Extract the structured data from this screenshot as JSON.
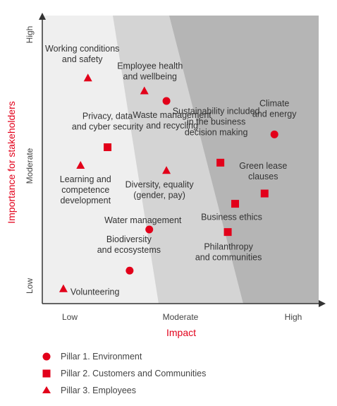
{
  "chart_data": {
    "type": "scatter",
    "title": "",
    "xlabel": "Impact",
    "ylabel": "Importance for stakeholders",
    "xlim": [
      0,
      100
    ],
    "ylim": [
      0,
      100
    ],
    "grid": false,
    "x_ticks": [
      "Low",
      "Moderate",
      "High"
    ],
    "y_ticks": [
      "Low",
      "Moderate",
      "High"
    ],
    "zones": [
      "low",
      "moderate",
      "high"
    ],
    "marker_color": "#e2001a",
    "zone_colors": [
      "#efefef",
      "#d4d4d4",
      "#b5b5b5"
    ],
    "legend_position": "bottom",
    "legend": [
      {
        "shape": "circle",
        "label": "Pillar 1. Environment"
      },
      {
        "shape": "square",
        "label": "Pillar 2. Customers and Communities"
      },
      {
        "shape": "triangle",
        "label": "Pillar 3. Employees"
      }
    ],
    "points": [
      {
        "label": [
          "Working conditions",
          "and safety"
        ],
        "pillar": 3,
        "x": 14,
        "y": 84
      },
      {
        "label": [
          "Employee health",
          "and wellbeing"
        ],
        "pillar": 3,
        "x": 37,
        "y": 79
      },
      {
        "label": [
          "Waste management",
          "and recycling"
        ],
        "pillar": 1,
        "x": 46,
        "y": 75
      },
      {
        "label": [
          "Privacy, data",
          "and cyber security"
        ],
        "pillar": 2,
        "x": 22,
        "y": 57
      },
      {
        "label": [
          "Climate",
          "and energy"
        ],
        "pillar": 1,
        "x": 90,
        "y": 62
      },
      {
        "label": [
          "Sustainability included",
          "in the business",
          "decision making"
        ],
        "pillar": 2,
        "x": 68,
        "y": 51
      },
      {
        "label": [
          "Learning and",
          "competence",
          "development"
        ],
        "pillar": 3,
        "x": 11,
        "y": 50
      },
      {
        "label": [
          "Diversity, equality",
          "(gender, pay)"
        ],
        "pillar": 3,
        "x": 46,
        "y": 48
      },
      {
        "label": [
          "Green lease",
          "clauses"
        ],
        "pillar": 2,
        "x": 86,
        "y": 39
      },
      {
        "label": [
          "Business ethics"
        ],
        "pillar": 2,
        "x": 74,
        "y": 35
      },
      {
        "label": [
          "Water management"
        ],
        "pillar": 1,
        "x": 39,
        "y": 25
      },
      {
        "label": [
          "Philanthropy",
          "and communities"
        ],
        "pillar": 2,
        "x": 71,
        "y": 24
      },
      {
        "label": [
          "Biodiversity",
          "and ecosystems"
        ],
        "pillar": 1,
        "x": 31,
        "y": 9
      },
      {
        "label": [
          "Volunteering"
        ],
        "pillar": 3,
        "x": 4,
        "y": 2
      }
    ]
  }
}
